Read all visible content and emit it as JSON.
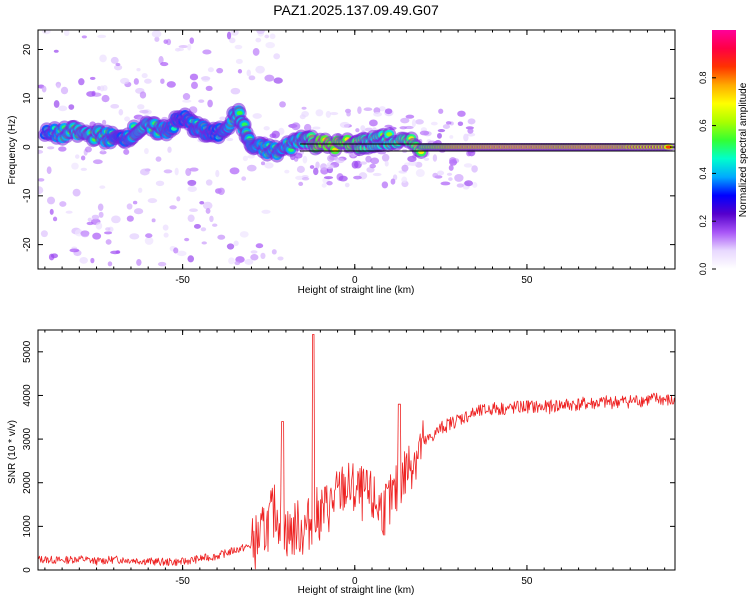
{
  "title": "PAZ1.2025.137.09.49.G07",
  "colors": {
    "snr_line": "#ee2222",
    "colormap": [
      "#ffffff",
      "#e8d8ff",
      "#a855f7",
      "#5500cc",
      "#0000ff",
      "#00aaff",
      "#00ffcc",
      "#33ff33",
      "#aaff00",
      "#ffff00",
      "#ffaa00",
      "#ff3300",
      "#ff0044",
      "#ff0099"
    ]
  },
  "chart_data": [
    {
      "type": "heatmap",
      "xlabel": "Height of straight line (km)",
      "ylabel": "Frequency (Hz)",
      "xlim": [
        -92,
        93
      ],
      "ylim": [
        -25,
        24
      ],
      "xticks": [
        -50,
        0,
        50
      ],
      "yticks": [
        -20,
        -10,
        0,
        10,
        20
      ],
      "colorbar": {
        "label": "Normalized spectral amplitude",
        "range": [
          0,
          1
        ],
        "ticks": [
          0.0,
          0.2,
          0.4,
          0.6,
          0.8
        ]
      },
      "ridge": [
        {
          "x": -90,
          "y": 2.5,
          "v": 0.45
        },
        {
          "x": -82,
          "y": 3.0,
          "v": 0.55
        },
        {
          "x": -75,
          "y": 2.5,
          "v": 0.55
        },
        {
          "x": -68,
          "y": 1.5,
          "v": 0.45
        },
        {
          "x": -62,
          "y": 4.0,
          "v": 0.55
        },
        {
          "x": -55,
          "y": 3.5,
          "v": 0.5
        },
        {
          "x": -50,
          "y": 6.0,
          "v": 0.45
        },
        {
          "x": -45,
          "y": 3.5,
          "v": 0.5
        },
        {
          "x": -40,
          "y": 2.5,
          "v": 0.45
        },
        {
          "x": -34,
          "y": 7.0,
          "v": 0.55
        },
        {
          "x": -30,
          "y": 0.0,
          "v": 0.5
        },
        {
          "x": -22,
          "y": -1.0,
          "v": 0.5
        },
        {
          "x": -15,
          "y": 2.0,
          "v": 0.55
        },
        {
          "x": -10,
          "y": 0.5,
          "v": 0.75
        },
        {
          "x": 0,
          "y": 0.5,
          "v": 0.7
        },
        {
          "x": 5,
          "y": 1.0,
          "v": 0.6
        },
        {
          "x": 10,
          "y": 1.5,
          "v": 0.6
        },
        {
          "x": 20,
          "y": 0.0,
          "v": 0.7
        },
        {
          "x": 30,
          "y": 0.0,
          "v": 0.85
        },
        {
          "x": 40,
          "y": 0.0,
          "v": 0.9
        },
        {
          "x": 50,
          "y": 0.0,
          "v": 0.9
        },
        {
          "x": 60,
          "y": 0.0,
          "v": 0.85
        },
        {
          "x": 70,
          "y": 0.0,
          "v": 0.9
        },
        {
          "x": 80,
          "y": 0.0,
          "v": 0.85
        },
        {
          "x": 92,
          "y": 0.0,
          "v": 0.85
        }
      ]
    },
    {
      "type": "line",
      "xlabel": "Height of straight line (km)",
      "ylabel": "SNR (10 * v/v)",
      "xlim": [
        -92,
        93
      ],
      "ylim": [
        0,
        5500
      ],
      "xticks": [
        -50,
        0,
        50
      ],
      "yticks": [
        0,
        1000,
        2000,
        3000,
        4000,
        5000
      ],
      "series": [
        {
          "x": [
            -92,
            -85,
            -80,
            -75,
            -70,
            -65,
            -60,
            -55,
            -50,
            -45,
            -40,
            -35,
            -30,
            -27,
            -25,
            -23,
            -21,
            -19,
            -17,
            -15,
            -13,
            -12,
            -10,
            -7,
            -5,
            -3,
            0,
            3,
            5,
            8,
            10,
            13,
            15,
            18,
            20,
            23,
            25,
            30,
            35,
            40,
            45,
            50,
            55,
            60,
            65,
            70,
            75,
            80,
            85,
            88,
            90,
            93
          ],
          "y": [
            250,
            220,
            260,
            200,
            240,
            230,
            200,
            180,
            190,
            260,
            320,
            450,
            560,
            800,
            1100,
            1400,
            1050,
            800,
            1000,
            900,
            1100,
            1200,
            1300,
            1500,
            1700,
            1900,
            1800,
            1700,
            1600,
            1400,
            1500,
            1900,
            2300,
            2700,
            2900,
            3100,
            3250,
            3450,
            3600,
            3700,
            3700,
            3750,
            3720,
            3780,
            3800,
            3820,
            3850,
            3870,
            3900,
            3920,
            3900,
            3850
          ]
        }
      ]
    }
  ]
}
